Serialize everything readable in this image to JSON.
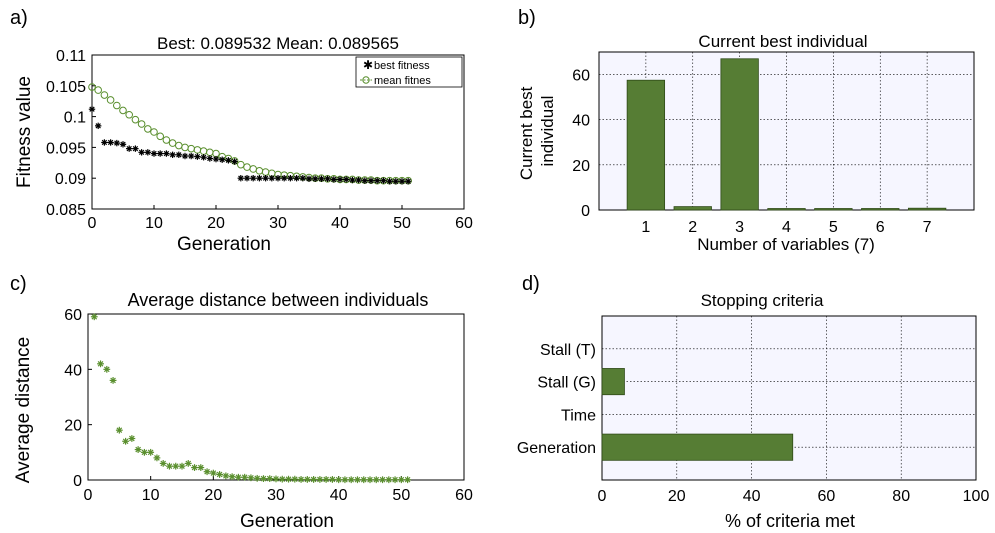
{
  "colors": {
    "bar": "#567d34",
    "bar_edge": "#2f4a18",
    "plot_bg_grid": "#f6f6ff",
    "best": "#000000",
    "mean": "#5a8f2e"
  },
  "panels": {
    "a": {
      "letter": "a)"
    },
    "b": {
      "letter": "b)"
    },
    "c": {
      "letter": "c)"
    },
    "d": {
      "letter": "d)"
    }
  },
  "chart_data": [
    {
      "id": "a",
      "type": "scatter",
      "title": "Best: 0.089532 Mean: 0.089565",
      "xlabel": "Generation",
      "ylabel": "Fitness value",
      "xlim": [
        0,
        60
      ],
      "ylim": [
        0.085,
        0.11
      ],
      "xticks": [
        "0",
        "10",
        "20",
        "30",
        "40",
        "50",
        "60"
      ],
      "yticks": [
        "0.085",
        "0.09",
        "0.095",
        "0.1",
        "0.105",
        "0.11"
      ],
      "legend_position": "top-right",
      "grid": false,
      "series": [
        {
          "name": "best fitness",
          "marker": "*",
          "x": [
            0,
            1,
            2,
            3,
            4,
            5,
            6,
            7,
            8,
            9,
            10,
            11,
            12,
            13,
            14,
            15,
            16,
            17,
            18,
            19,
            20,
            21,
            22,
            23,
            24,
            25,
            26,
            27,
            28,
            29,
            30,
            31,
            32,
            33,
            34,
            35,
            36,
            37,
            38,
            39,
            40,
            41,
            42,
            43,
            44,
            45,
            46,
            47,
            48,
            49,
            50,
            51
          ],
          "y": [
            0.1012,
            0.0985,
            0.0958,
            0.0958,
            0.0957,
            0.0955,
            0.0948,
            0.0948,
            0.0942,
            0.0942,
            0.094,
            0.094,
            0.094,
            0.0938,
            0.0938,
            0.0936,
            0.0936,
            0.0935,
            0.0934,
            0.0932,
            0.0931,
            0.093,
            0.0929,
            0.0927,
            0.09,
            0.09,
            0.09,
            0.09,
            0.09,
            0.09,
            0.09,
            0.09,
            0.09,
            0.09,
            0.09,
            0.0899,
            0.0899,
            0.0899,
            0.0899,
            0.0898,
            0.0898,
            0.0898,
            0.0897,
            0.0897,
            0.0896,
            0.0896,
            0.0896,
            0.0896,
            0.0895,
            0.0895,
            0.0895,
            0.0895
          ]
        },
        {
          "name": "mean fitnes",
          "marker": "o",
          "x": [
            0,
            1,
            2,
            3,
            4,
            5,
            6,
            7,
            8,
            9,
            10,
            11,
            12,
            13,
            14,
            15,
            16,
            17,
            18,
            19,
            20,
            21,
            22,
            23,
            24,
            25,
            26,
            27,
            28,
            29,
            30,
            31,
            32,
            33,
            34,
            35,
            36,
            37,
            38,
            39,
            40,
            41,
            42,
            43,
            44,
            45,
            46,
            47,
            48,
            49,
            50,
            51
          ],
          "y": [
            0.1048,
            0.1043,
            0.1035,
            0.1027,
            0.1018,
            0.101,
            0.1003,
            0.0995,
            0.0988,
            0.098,
            0.0975,
            0.0968,
            0.0962,
            0.0957,
            0.0953,
            0.095,
            0.0948,
            0.0946,
            0.0944,
            0.0942,
            0.094,
            0.0935,
            0.0932,
            0.0928,
            0.0922,
            0.0918,
            0.0915,
            0.0912,
            0.091,
            0.0908,
            0.0906,
            0.0905,
            0.0904,
            0.0903,
            0.0902,
            0.0901,
            0.09,
            0.09,
            0.0899,
            0.0899,
            0.0898,
            0.0898,
            0.0898,
            0.0897,
            0.0897,
            0.0897,
            0.0896,
            0.0896,
            0.0896,
            0.0896,
            0.0896,
            0.0896
          ]
        }
      ]
    },
    {
      "id": "b",
      "type": "bar",
      "title": "Current best individual",
      "xlabel": "Number of variables (7)",
      "ylabel": [
        "Current best",
        "individual"
      ],
      "categories": [
        "1",
        "2",
        "3",
        "4",
        "5",
        "6",
        "7"
      ],
      "values": [
        57.5,
        1.5,
        67,
        0.3,
        0.3,
        0.3,
        0.8
      ],
      "ylim": [
        0,
        70
      ],
      "yticks": [
        "0",
        "20",
        "40",
        "60"
      ],
      "grid": true
    },
    {
      "id": "c",
      "type": "scatter",
      "title": "Average distance between individuals",
      "xlabel": "Generation",
      "ylabel": "Average distance",
      "xlim": [
        0,
        60
      ],
      "ylim": [
        0,
        60
      ],
      "xticks": [
        "0",
        "10",
        "20",
        "30",
        "40",
        "50",
        "60"
      ],
      "yticks": [
        "0",
        "20",
        "40",
        "60"
      ],
      "grid": false,
      "x": [
        1,
        2,
        3,
        4,
        5,
        6,
        7,
        8,
        9,
        10,
        11,
        12,
        13,
        14,
        15,
        16,
        17,
        18,
        19,
        20,
        21,
        22,
        23,
        24,
        25,
        26,
        27,
        28,
        29,
        30,
        31,
        32,
        33,
        34,
        35,
        36,
        37,
        38,
        39,
        40,
        41,
        42,
        43,
        44,
        45,
        46,
        47,
        48,
        49,
        50,
        51
      ],
      "y": [
        59,
        42,
        40,
        36,
        18,
        14,
        15,
        11,
        10,
        10,
        8,
        6,
        5,
        5,
        5,
        6,
        4.5,
        4.5,
        3,
        2.5,
        2,
        1.5,
        1.2,
        1,
        1,
        0.8,
        0.6,
        0.5,
        0.5,
        0.4,
        0.3,
        0.3,
        0.3,
        0.2,
        0.2,
        0.2,
        0.2,
        0.2,
        0.2,
        0.1,
        0.1,
        0.1,
        0.1,
        0.1,
        0.1,
        0.1,
        0.1,
        0.1,
        0.1,
        0.1,
        0.1
      ]
    },
    {
      "id": "d",
      "type": "bar",
      "orientation": "horizontal",
      "title": "Stopping criteria",
      "xlabel": "% of criteria met",
      "categories": [
        "Stall (T)",
        "Stall (G)",
        "Time",
        "Generation"
      ],
      "values": [
        0,
        6,
        0,
        51
      ],
      "xlim": [
        0,
        100
      ],
      "xticks": [
        "0",
        "20",
        "40",
        "60",
        "80",
        "100"
      ],
      "grid": true
    }
  ]
}
